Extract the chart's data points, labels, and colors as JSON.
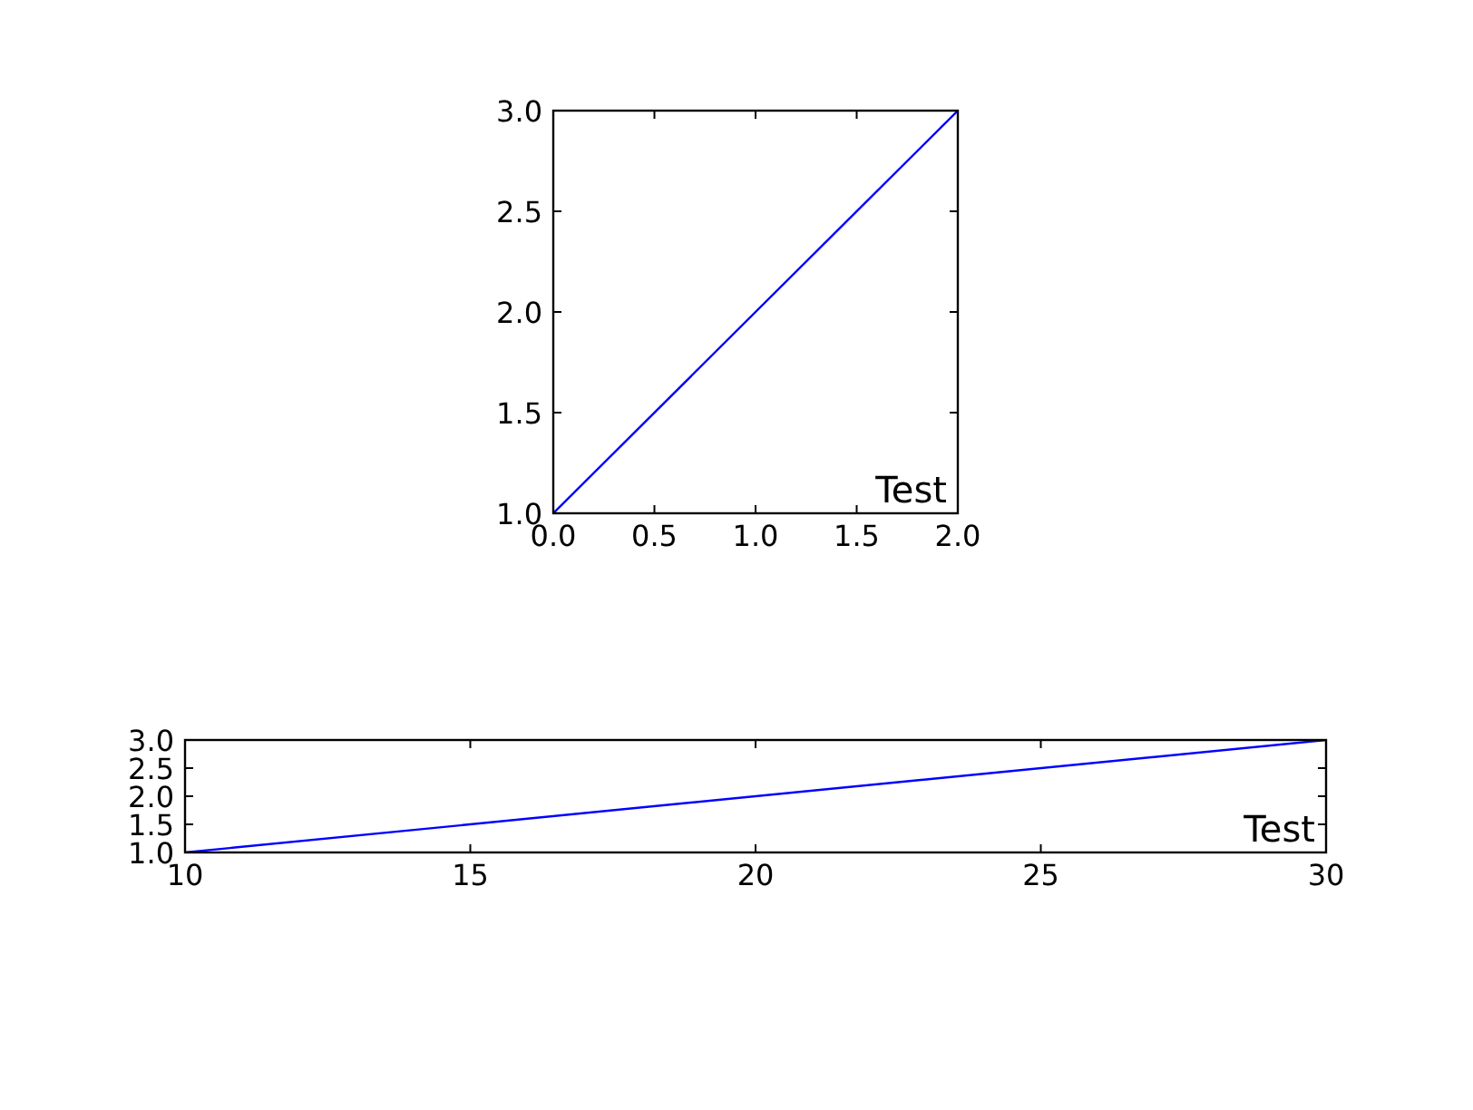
{
  "chart_data": [
    {
      "type": "line",
      "x": [
        0,
        2
      ],
      "values": [
        1,
        3
      ],
      "color": "#0000ff",
      "xlim": [
        0,
        2
      ],
      "ylim": [
        1,
        3
      ],
      "xticks": [
        {
          "value": 0,
          "label": "0.0"
        },
        {
          "value": 0.5,
          "label": "0.5"
        },
        {
          "value": 1,
          "label": "1.0"
        },
        {
          "value": 1.5,
          "label": "1.5"
        },
        {
          "value": 2,
          "label": "2.0"
        }
      ],
      "yticks": [
        {
          "value": 1,
          "label": "1.0"
        },
        {
          "value": 1.5,
          "label": "1.5"
        },
        {
          "value": 2,
          "label": "2.0"
        },
        {
          "value": 2.5,
          "label": "2.5"
        },
        {
          "value": 3,
          "label": "3.0"
        }
      ],
      "annotations": [
        "Test"
      ]
    },
    {
      "type": "line",
      "x": [
        10,
        30
      ],
      "values": [
        1,
        3
      ],
      "color": "#0000ff",
      "xlim": [
        10,
        30
      ],
      "ylim": [
        1,
        3
      ],
      "xticks": [
        10,
        15,
        20,
        25,
        30
      ],
      "yticks": [
        {
          "value": 1,
          "label": "1.0"
        },
        {
          "value": 1.5,
          "label": "1.5"
        },
        {
          "value": 2,
          "label": "2.0"
        },
        {
          "value": 2.5,
          "label": "2.5"
        },
        {
          "value": 3,
          "label": "3.0"
        }
      ],
      "annotations": [
        "Test"
      ]
    }
  ]
}
